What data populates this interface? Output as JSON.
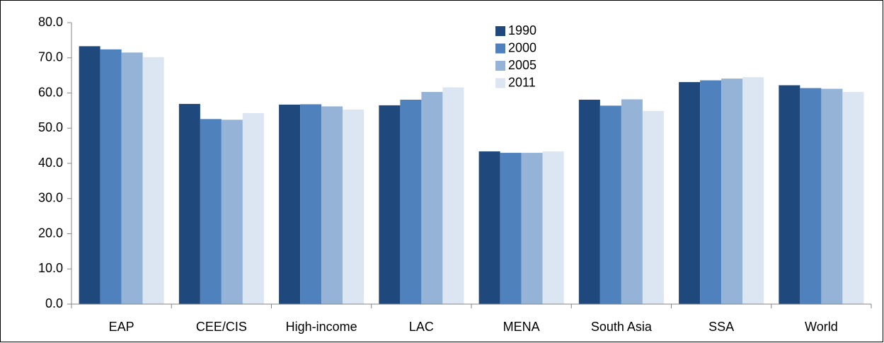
{
  "chart_data": {
    "type": "bar",
    "categories": [
      "EAP",
      "CEE/CIS",
      "High-income",
      "LAC",
      "MENA",
      "South Asia",
      "SSA",
      "World"
    ],
    "series": [
      {
        "name": "1990",
        "color": "#1f497d",
        "values": [
          73.3,
          56.9,
          56.7,
          56.5,
          43.4,
          58.1,
          63.1,
          62.2
        ]
      },
      {
        "name": "2000",
        "color": "#4f81bd",
        "values": [
          72.4,
          52.6,
          56.8,
          58.1,
          43.0,
          56.4,
          63.6,
          61.4
        ]
      },
      {
        "name": "2005",
        "color": "#95b3d7",
        "values": [
          71.5,
          52.4,
          56.2,
          60.3,
          43.0,
          58.2,
          64.1,
          61.2
        ]
      },
      {
        "name": "2011",
        "color": "#dce6f2",
        "values": [
          70.2,
          54.3,
          55.3,
          61.6,
          43.4,
          54.9,
          64.5,
          60.3
        ]
      }
    ],
    "ylim": [
      0,
      80
    ],
    "yticks": [
      {
        "value": 0,
        "label": "0.0"
      },
      {
        "value": 10,
        "label": "10.0"
      },
      {
        "value": 20,
        "label": "20.0"
      },
      {
        "value": 30,
        "label": "30.0"
      },
      {
        "value": 40,
        "label": "40.0"
      },
      {
        "value": 50,
        "label": "50.0"
      },
      {
        "value": 60,
        "label": "60.0"
      },
      {
        "value": 70,
        "label": "70.0"
      },
      {
        "value": 80,
        "label": "80.0"
      }
    ],
    "grid": false,
    "legend": "top-center"
  }
}
